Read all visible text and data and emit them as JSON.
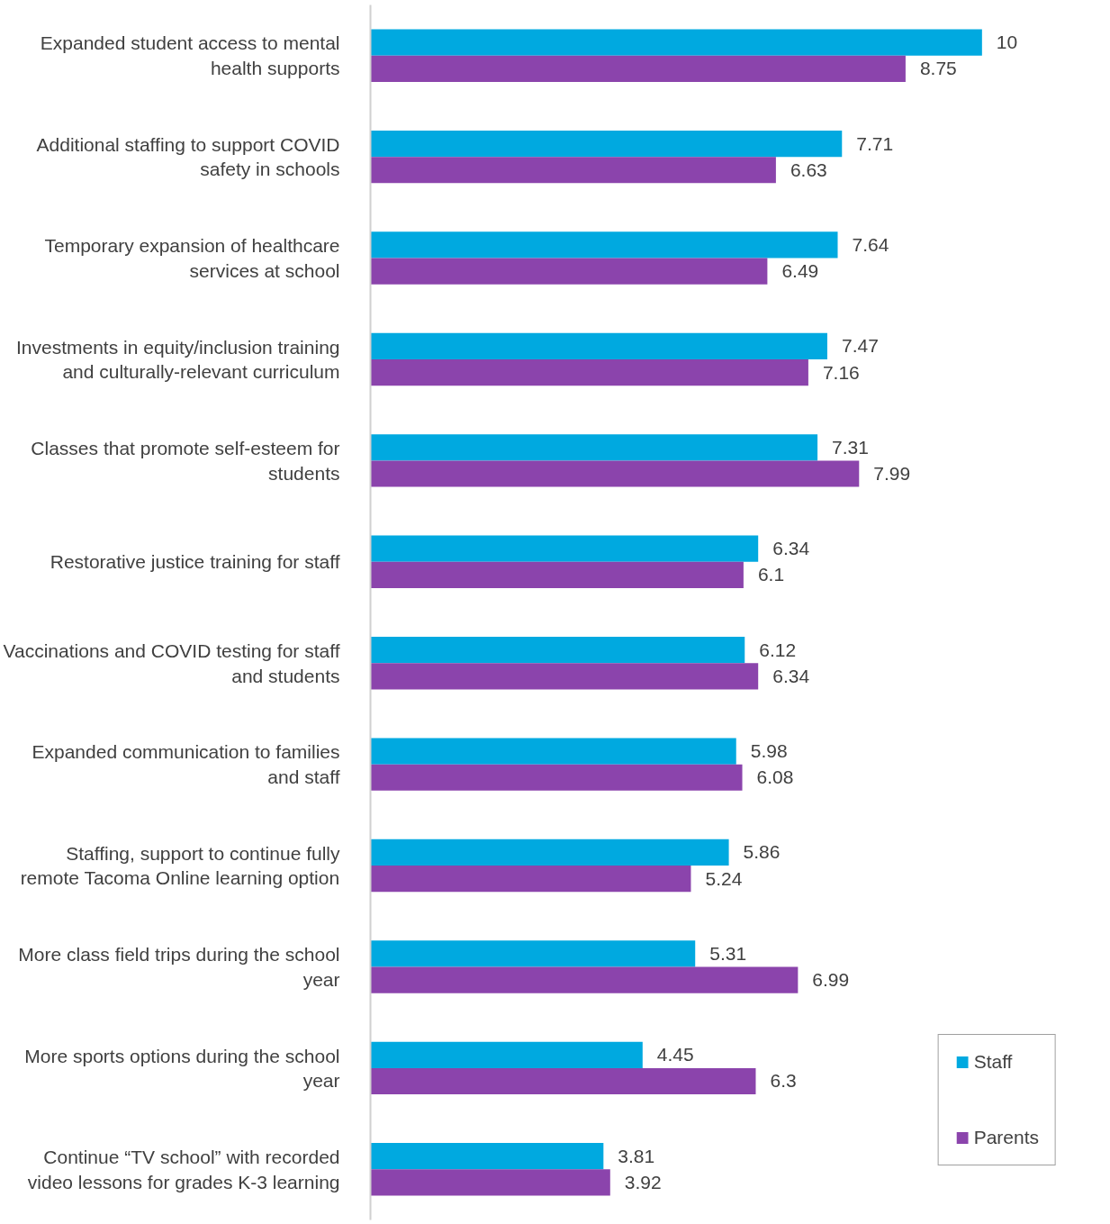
{
  "chart_data": {
    "type": "bar",
    "orientation": "horizontal",
    "data_labels": true,
    "grid": false,
    "legend": "bottom right",
    "categories": [
      "Expanded student access to mental\nhealth supports",
      "Additional staffing to support COVID\nsafety in schools",
      "Temporary expansion of healthcare\nservices at school",
      "Investments in equity/inclusion training\nand culturally-relevant curriculum",
      "Classes that promote self-esteem for\nstudents",
      "Restorative justice training for staff",
      "Vaccinations and COVID testing for staff\nand students",
      "Expanded communication to families\nand staff",
      "Staffing, support to continue fully\nremote Tacoma Online learning option",
      "More class field trips during the school\nyear",
      "More sports options during the school\nyear",
      "Continue “TV school” with recorded\nvideo lessons for grades K-3 learning"
    ],
    "series": [
      {
        "name": "Staff",
        "color": "#00a9e0",
        "values": [
          10,
          7.71,
          7.64,
          7.47,
          7.31,
          6.34,
          6.12,
          5.98,
          5.86,
          5.31,
          4.45,
          3.81
        ]
      },
      {
        "name": "Parents",
        "color": "#8b44ac",
        "values": [
          8.75,
          6.63,
          6.49,
          7.16,
          7.99,
          6.1,
          6.34,
          6.08,
          5.24,
          6.99,
          6.3,
          3.92
        ]
      }
    ]
  }
}
